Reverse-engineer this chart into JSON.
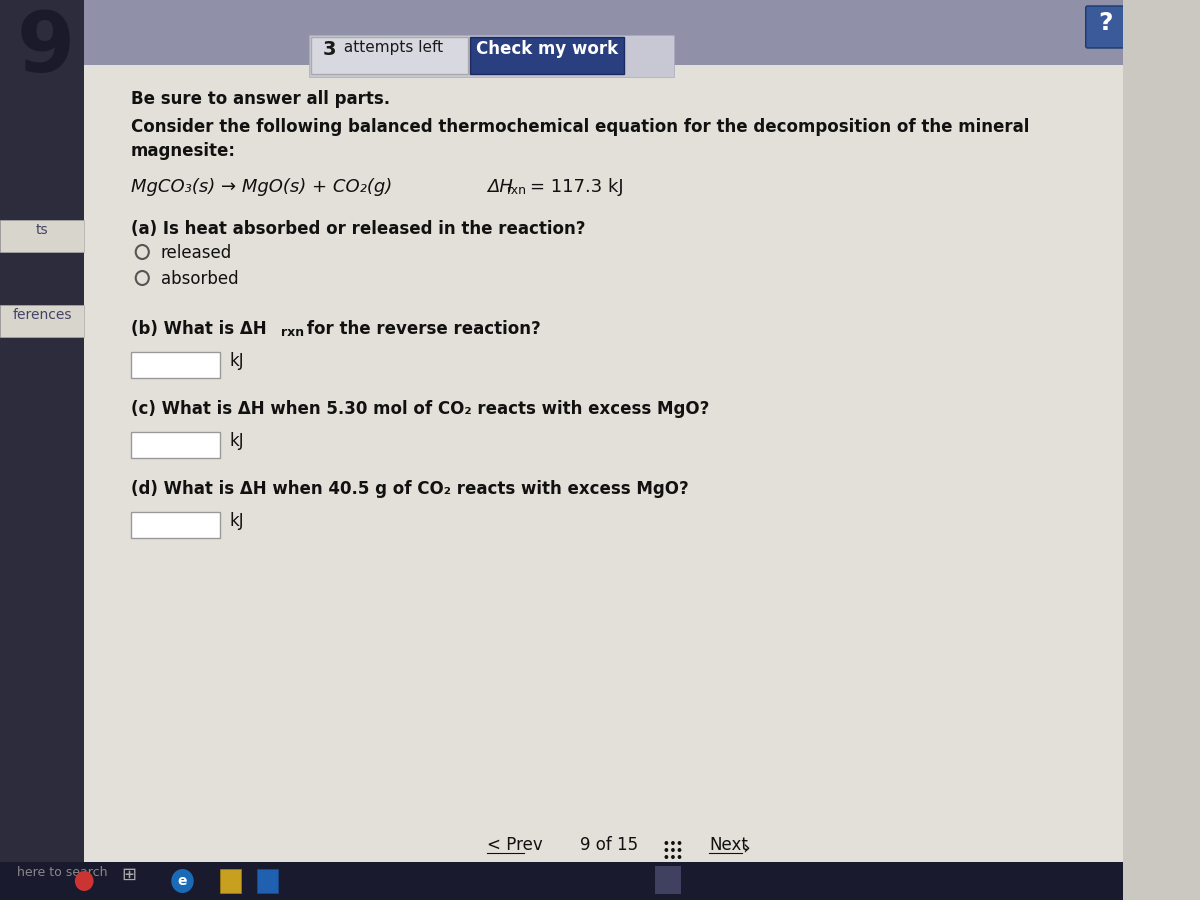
{
  "bg_color": "#cac8c0",
  "main_bg": "#e2e0d8",
  "question_number": "9",
  "attempts_text": "3 attempts left",
  "check_button": "Check my work",
  "question_mark": "?",
  "be_sure": "Be sure to answer all parts.",
  "intro_line1": "Consider the following balanced thermochemical equation for the decomposition of the mineral",
  "intro_line2": "magnesite:",
  "equation_left": "MgCO₃(s) → MgO(s) + CO₂(g)",
  "equation_delta": "ΔH",
  "equation_sub": "rxn",
  "equation_right": "= 117.3 kJ",
  "part_a_q": "(a) Is heat absorbed or released in the reaction?",
  "radio1": "released",
  "radio2": "absorbed",
  "part_b_prefix": "(b) What is ΔH",
  "part_b_sub": "rxn",
  "part_b_suffix": " for the reverse reaction?",
  "part_c_q": "(c) What is ΔH when 5.30 mol of CO₂ reacts with excess MgO?",
  "part_d_q": "(d) What is ΔH when 40.5 g of CO₂ reacts with excess MgO?",
  "kJ": "kJ",
  "prev_text": "< Prev",
  "page_text": "9 of 15",
  "next_text": "Next",
  "left_tab_ts": "ts",
  "left_tab_ref": "ferences",
  "top_bar_color": "#9090a8",
  "check_btn_color": "#2a3f80",
  "attempts_box_color": "#d8d8e0",
  "input_box_color": "#ffffff",
  "input_box_border": "#999999",
  "text_color": "#1a1a1a",
  "bold_color": "#111111",
  "qmark_color": "#3a5a9a",
  "tab_color": "#d8d5cc",
  "taskbar_color": "#1a1a2e",
  "left_panel_color": "#e8e6de",
  "number_color": "#2a2a3a"
}
